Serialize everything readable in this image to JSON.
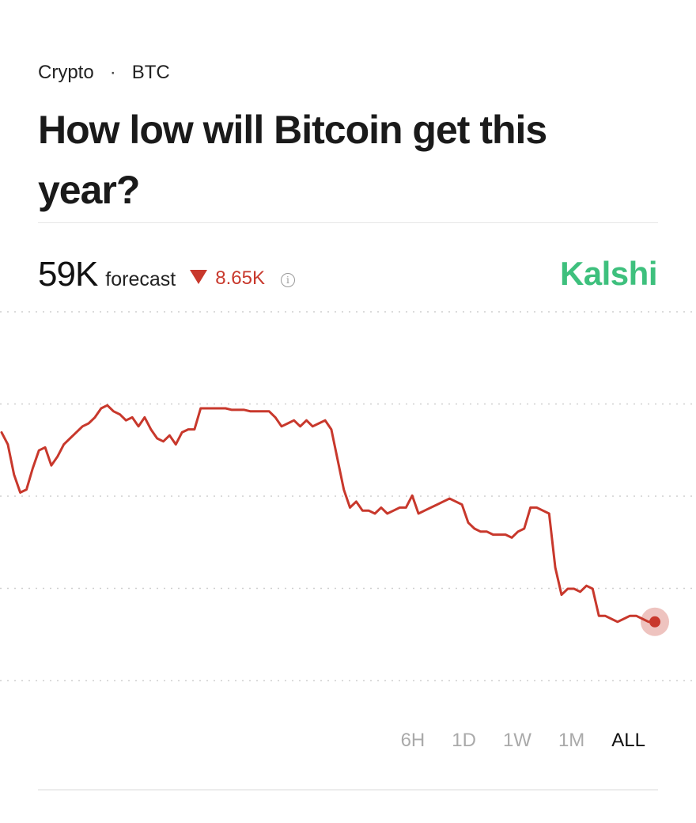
{
  "breadcrumb": {
    "category": "Crypto",
    "separator": "·",
    "asset": "BTC"
  },
  "title": "How low will Bitcoin get this year?",
  "forecast": {
    "value": "59K",
    "label": "forecast",
    "change": "8.65K",
    "direction": "down"
  },
  "brand": "Kalshi",
  "colors": {
    "line": "#c8382c",
    "brand": "#3ec07d",
    "down": "#c8382c"
  },
  "range_tabs": [
    {
      "label": "6H",
      "active": false
    },
    {
      "label": "1D",
      "active": false
    },
    {
      "label": "1W",
      "active": false
    },
    {
      "label": "1M",
      "active": false
    },
    {
      "label": "ALL",
      "active": true
    }
  ],
  "chart_data": {
    "type": "line",
    "grid": "dotted horizontal",
    "ylim": [
      0,
      100
    ],
    "series": [
      {
        "values": [
          72,
          68,
          58,
          52,
          53,
          60,
          66,
          67,
          61,
          64,
          68,
          70,
          72,
          74,
          75,
          77,
          80,
          81,
          79,
          78,
          76,
          77,
          74,
          77,
          73,
          70,
          69,
          71,
          68,
          72,
          73,
          73,
          80,
          80,
          80,
          80,
          80,
          79.5,
          79.5,
          79.5,
          79,
          79,
          79,
          79,
          77,
          74,
          75,
          76,
          74,
          76,
          74,
          75,
          76,
          73,
          63,
          53,
          47,
          49,
          46,
          46,
          45,
          47,
          45,
          46,
          47,
          47,
          51,
          45,
          46,
          47,
          48,
          49,
          50,
          49,
          48,
          42,
          40,
          39,
          39,
          38,
          38,
          38,
          37,
          39,
          40,
          47,
          47,
          46,
          45,
          27,
          18,
          20,
          20,
          19,
          21,
          20,
          11,
          11,
          10,
          9,
          10,
          11,
          11,
          10,
          9,
          9
        ]
      }
    ]
  }
}
